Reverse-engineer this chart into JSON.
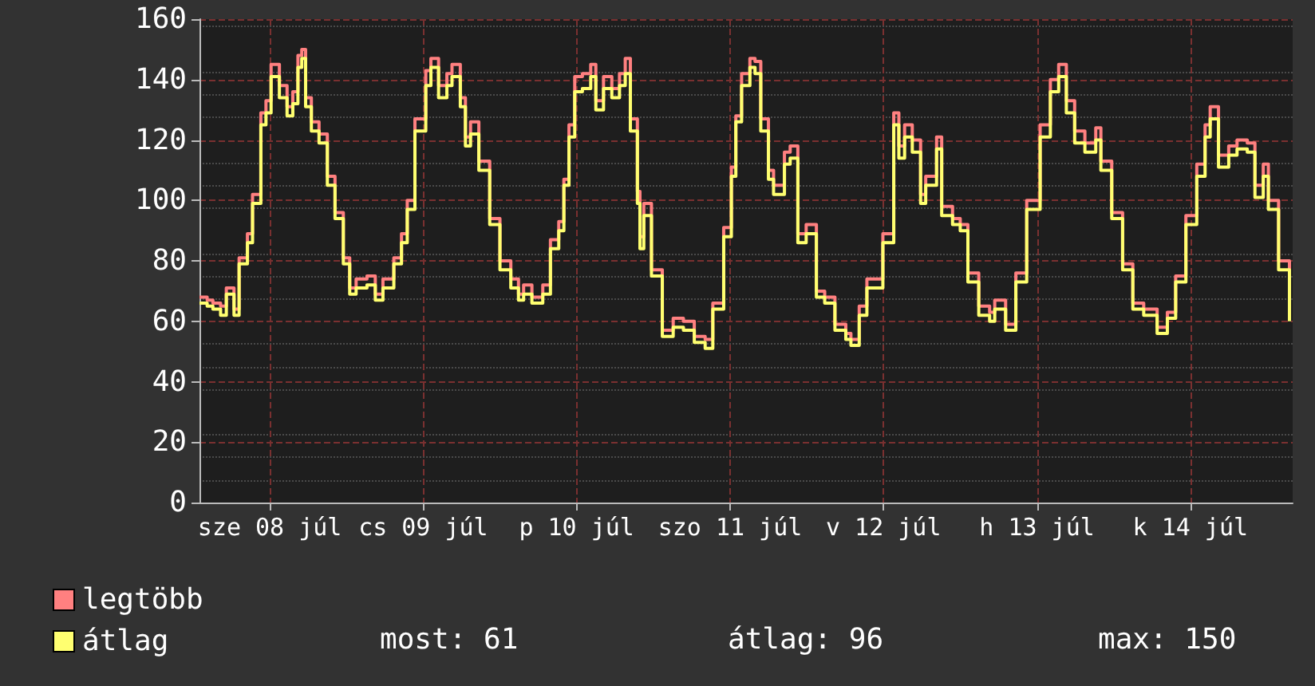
{
  "chart_data": {
    "type": "step",
    "xlim": [
      "--07-07T13:00",
      "--07-14T16:00"
    ],
    "xticks": [
      {
        "value": "--07-08",
        "label": "sze 08 júl"
      },
      {
        "value": "--07-09",
        "label": "cs 09 júl"
      },
      {
        "value": "--07-10",
        "label": "p 10 júl"
      },
      {
        "value": "--07-11",
        "label": "szo 11 júl"
      },
      {
        "value": "--07-12",
        "label": "v 12 júl"
      },
      {
        "value": "--07-13",
        "label": "h 13 júl"
      },
      {
        "value": "--07-14",
        "label": "k 14 júl"
      }
    ],
    "ylim": [
      0,
      160
    ],
    "yticks": [
      0,
      20,
      40,
      60,
      80,
      100,
      120,
      140,
      160
    ],
    "grid": true,
    "legend": "bottom left",
    "x": [
      "--07-07T13:00",
      "--07-07T14:12",
      "--07-07T15:06",
      "--07-07T16:18",
      "--07-07T17:12",
      "--07-07T18:24",
      "--07-07T19:12",
      "--07-07T20:30",
      "--07-07T21:18",
      "--07-07T22:36",
      "--07-07T23:24",
      "--07-08T00:12",
      "--07-08T01:30",
      "--07-08T02:42",
      "--07-08T03:36",
      "--07-08T04:24",
      "--07-08T05:00",
      "--07-08T05:36",
      "--07-08T06:30",
      "--07-08T07:42",
      "--07-08T09:00",
      "--07-08T10:12",
      "--07-08T11:30",
      "--07-08T12:30",
      "--07-08T13:30",
      "--07-08T15:12",
      "--07-08T16:30",
      "--07-08T17:42",
      "--07-08T19:24",
      "--07-08T20:36",
      "--07-08T21:30",
      "--07-08T22:42",
      "--07-09T00:24",
      "--07-09T01:12",
      "--07-09T02:24",
      "--07-09T03:42",
      "--07-09T04:30",
      "--07-09T05:48",
      "--07-09T06:36",
      "--07-09T07:24",
      "--07-09T08:42",
      "--07-09T10:24",
      "--07-09T12:00",
      "--07-09T13:42",
      "--07-09T14:54",
      "--07-09T15:42",
      "--07-09T17:00",
      "--07-09T18:42",
      "--07-09T19:54",
      "--07-09T21:12",
      "--07-09T22:00",
      "--07-09T22:48",
      "--07-09T23:42",
      "--07-10T00:54",
      "--07-10T02:12",
      "--07-10T03:00",
      "--07-10T04:12",
      "--07-10T05:30",
      "--07-10T06:42",
      "--07-10T07:36",
      "--07-10T08:24",
      "--07-10T09:30",
      "--07-10T09:54",
      "--07-10T10:30",
      "--07-10T11:42",
      "--07-10T13:24",
      "--07-10T15:06",
      "--07-10T16:42",
      "--07-10T18:24",
      "--07-10T20:06",
      "--07-10T21:18",
      "--07-10T23:00",
      "--07-11T00:12",
      "--07-11T00:54",
      "--07-11T01:48",
      "--07-11T03:06",
      "--07-11T03:54",
      "--07-11T04:48",
      "--07-11T06:00",
      "--07-11T06:48",
      "--07-11T08:30",
      "--07-11T09:24",
      "--07-11T10:36",
      "--07-11T11:54",
      "--07-11T13:30",
      "--07-11T14:48",
      "--07-11T16:24",
      "--07-11T18:06",
      "--07-11T18:54",
      "--07-11T20:12",
      "--07-11T21:24",
      "--07-11T22:42",
      "--07-11T23:54",
      "--07-12T01:36",
      "--07-12T02:24",
      "--07-12T03:18",
      "--07-12T04:30",
      "--07-12T05:48",
      "--07-12T06:36",
      "--07-12T08:18",
      "--07-12T09:06",
      "--07-12T10:48",
      "--07-12T12:00",
      "--07-12T13:12",
      "--07-12T14:54",
      "--07-12T16:36",
      "--07-12T17:24",
      "--07-12T19:06",
      "--07-12T20:42",
      "--07-12T22:24",
      "--07-13T00:30",
      "--07-13T02:06",
      "--07-13T03:24",
      "--07-13T04:36",
      "--07-13T05:54",
      "--07-13T07:30",
      "--07-13T09:12",
      "--07-13T10:00",
      "--07-13T11:42",
      "--07-13T13:24",
      "--07-13T15:00",
      "--07-13T16:42",
      "--07-13T18:48",
      "--07-13T20:24",
      "--07-13T21:42",
      "--07-13T23:18",
      "--07-14T01:00",
      "--07-14T02:18",
      "--07-14T03:06",
      "--07-14T04:24",
      "--07-14T06:00",
      "--07-14T07:18",
      "--07-14T08:54",
      "--07-14T10:06",
      "--07-14T11:24",
      "--07-14T12:12",
      "--07-14T13:48",
      "--07-14T15:30"
    ],
    "series": [
      {
        "name": "legtöbb",
        "color": "#ff8080",
        "values": [
          68,
          67,
          66,
          65,
          71,
          64,
          81,
          89,
          102,
          129,
          133,
          145,
          138,
          131,
          136,
          148,
          150,
          134,
          126,
          122,
          108,
          96,
          81,
          71,
          74,
          75,
          69,
          74,
          81,
          89,
          100,
          127,
          143,
          147,
          138,
          142,
          145,
          134,
          121,
          126,
          113,
          94,
          80,
          74,
          69,
          72,
          68,
          72,
          87,
          93,
          107,
          125,
          141,
          142,
          145,
          133,
          141,
          137,
          142,
          147,
          127,
          103,
          88,
          99,
          77,
          57,
          61,
          60,
          55,
          54,
          66,
          91,
          111,
          128,
          142,
          147,
          146,
          127,
          110,
          105,
          116,
          118,
          89,
          92,
          70,
          68,
          59,
          56,
          54,
          65,
          74,
          74,
          89,
          129,
          118,
          125,
          120,
          102,
          108,
          121,
          98,
          94,
          92,
          76,
          65,
          63,
          67,
          59,
          76,
          100,
          125,
          140,
          145,
          133,
          123,
          119,
          124,
          113,
          96,
          79,
          66,
          64,
          58,
          63,
          75,
          95,
          112,
          125,
          131,
          115,
          118,
          120,
          119,
          105,
          112,
          100,
          80,
          62
        ]
      },
      {
        "name": "átlag",
        "color": "#ffff70",
        "values": [
          66,
          65,
          64,
          62,
          69,
          62,
          79,
          86,
          99,
          125,
          129,
          141,
          134,
          128,
          132,
          144,
          147,
          131,
          123,
          119,
          105,
          94,
          79,
          69,
          71,
          72,
          67,
          71,
          79,
          86,
          97,
          123,
          138,
          144,
          134,
          138,
          141,
          131,
          118,
          122,
          110,
          92,
          77,
          71,
          67,
          69,
          66,
          69,
          84,
          90,
          105,
          121,
          136,
          137,
          141,
          130,
          137,
          134,
          138,
          142,
          123,
          99,
          84,
          95,
          75,
          55,
          58,
          57,
          53,
          51,
          64,
          88,
          108,
          126,
          138,
          144,
          142,
          123,
          107,
          102,
          112,
          114,
          86,
          89,
          68,
          66,
          57,
          54,
          52,
          62,
          71,
          71,
          86,
          125,
          114,
          121,
          116,
          99,
          105,
          117,
          95,
          92,
          90,
          73,
          62,
          60,
          64,
          57,
          73,
          97,
          121,
          136,
          141,
          129,
          119,
          116,
          120,
          110,
          94,
          77,
          64,
          62,
          56,
          61,
          73,
          92,
          108,
          121,
          127,
          111,
          115,
          117,
          116,
          101,
          108,
          97,
          77,
          60
        ]
      }
    ],
    "annotations": [
      "most: 61",
      "átlag: 96",
      "max: 150"
    ]
  }
}
